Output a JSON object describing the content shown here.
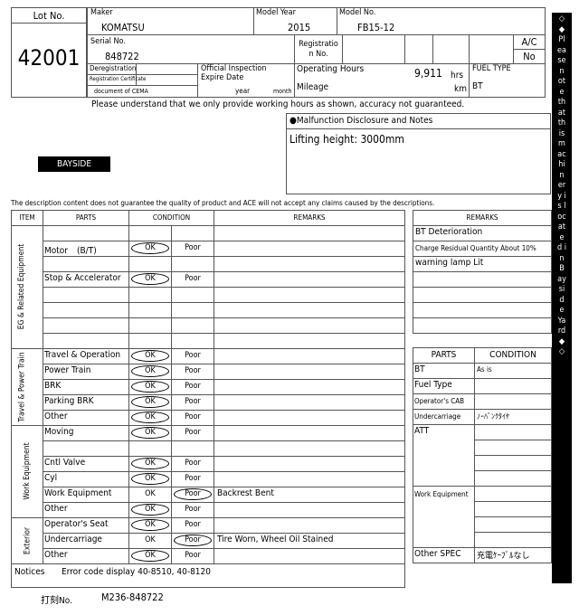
{
  "lot": {
    "label": "Lot No.",
    "value": "42001"
  },
  "header": {
    "maker_label": "Maker",
    "maker": "KOMATSU",
    "model_year_label": "Model Year",
    "model_year": "2015",
    "model_no_label": "Model No.",
    "model_no": "FB15-12",
    "serial_label": "Serial No.",
    "serial": "848722",
    "registration_label": "Registration No.",
    "ac_label": "A/C",
    "ac": "No",
    "dereg_label": "Deregistration",
    "reg_cert_label": "Registration Certificate",
    "cema_label": "document of CEMA",
    "inspection_label": "Official Inspection Expire Date",
    "year_label": "year",
    "month_label": "month",
    "hours_label": "Operating Hours",
    "hours": "9,911",
    "hours_unit": "hrs",
    "mileage_label": "Mileage",
    "km_unit": "km",
    "fuel_label": "FUEL TYPE",
    "fuel": "BT"
  },
  "hours_note": "Please understand that we only provide working hours as shown, accuracy not guaranteed.",
  "malfunction": {
    "title": "●Malfunction Disclosure and Notes",
    "text": "Lifting height: 3000mm"
  },
  "location_badge": "BAYSIDE",
  "disclaimer": "The description content does not guarantee the quality of product and ACE will not accept any claims caused by the descriptions.",
  "side_strip": "◇◆Please note that this machinery is located in Bayside Yard◆◇",
  "inspection": {
    "headers": {
      "item": "ITEM",
      "parts": "PARTS",
      "condition": "CONDITION",
      "remarks": "REMARKS"
    },
    "ok": "OK",
    "poor": "Poor",
    "sections": [
      {
        "name": "EG & Related Equipment",
        "rows": [
          {
            "part": "",
            "cond": ""
          },
          {
            "part": "Motor　(B/T)",
            "cond": "OK"
          },
          {
            "part": "",
            "cond": ""
          },
          {
            "part": "Stop & Accelerator",
            "cond": "OK"
          },
          {
            "part": "",
            "cond": ""
          },
          {
            "part": "",
            "cond": ""
          },
          {
            "part": "",
            "cond": ""
          },
          {
            "part": "",
            "cond": ""
          }
        ]
      },
      {
        "name": "Travel & Power Train",
        "rows": [
          {
            "part": "Travel & Operation",
            "cond": "OK"
          },
          {
            "part": "Power Train",
            "cond": "OK"
          },
          {
            "part": "BRK",
            "cond": "OK"
          },
          {
            "part": "Parking BRK",
            "cond": "OK"
          },
          {
            "part": "Other",
            "cond": "OK"
          }
        ]
      },
      {
        "name": "Work Equipment",
        "rows": [
          {
            "part": "Moving",
            "cond": "OK"
          },
          {
            "part": "",
            "cond": ""
          },
          {
            "part": "Cntl Valve",
            "cond": "OK"
          },
          {
            "part": "Cyl",
            "cond": "OK"
          },
          {
            "part": "Work Equipment",
            "cond": "Poor",
            "remark": "Backrest Bent"
          },
          {
            "part": "Other",
            "cond": "OK"
          }
        ]
      },
      {
        "name": "Exterior",
        "rows": [
          {
            "part": "Operator's Seat",
            "cond": "OK"
          },
          {
            "part": "Undercarriage",
            "cond": "Poor",
            "remark": "Tire Worn, Wheel Oil Stained"
          },
          {
            "part": "Other",
            "cond": "OK"
          }
        ]
      }
    ],
    "notices_label": "Notices",
    "notices": "Error code display 40-8510, 40-8120"
  },
  "right_remarks": {
    "header": "REMARKS",
    "rows": [
      "BT Deterioration",
      "Charge Residual Quantity About 10%",
      "warning lamp Lit",
      "",
      "",
      "",
      ""
    ]
  },
  "spec": {
    "parts_header": "PARTS",
    "condition_header": "CONDITION",
    "rows": [
      {
        "part": "BT",
        "cond": "As is"
      },
      {
        "part": "Fuel Type",
        "cond": ""
      },
      {
        "part": "Operator's CAB",
        "cond": ""
      },
      {
        "part": "Undercarriage",
        "cond": "ﾉｰﾊﾞﾝｸﾀｲﾔ"
      }
    ],
    "att_label": "ATT",
    "work_label": "Work Equipment",
    "other_label": "Other SPEC",
    "other": "充電ｹｰﾌﾞﾙなし"
  },
  "stamp": {
    "label": "打刻No.",
    "value": "M236-848722"
  }
}
